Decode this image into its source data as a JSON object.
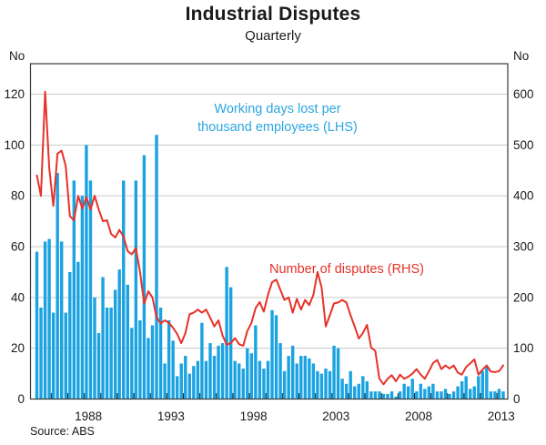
{
  "chart_data": {
    "type": "combo-bar-line",
    "title": "Industrial Disputes",
    "subtitle": "Quarterly",
    "frequency": "quarterly",
    "start": "1985Q1",
    "end": "2013Q2",
    "left_axis": {
      "unit": "No",
      "ticks": [
        0,
        20,
        40,
        60,
        80,
        100,
        120
      ],
      "range": [
        0,
        132
      ]
    },
    "right_axis": {
      "unit": "No",
      "ticks": [
        0,
        100,
        200,
        300,
        400,
        500,
        600
      ],
      "range": [
        0,
        660
      ]
    },
    "x_axis": {
      "year_labels": [
        1988,
        1993,
        1998,
        2003,
        2008,
        2013
      ],
      "first_year": 1985,
      "last_year": 2013
    },
    "grid": "horizontal",
    "series": [
      {
        "name": "Working days lost per thousand employees (LHS)",
        "type": "bar",
        "axis": "left",
        "color": "#1ba3e1",
        "values": [
          58,
          36,
          62,
          63,
          34,
          89,
          62,
          34,
          50,
          86,
          54,
          80,
          100,
          86,
          40,
          26,
          48,
          36,
          36,
          43,
          51,
          86,
          45,
          28,
          86,
          31,
          96,
          24,
          29,
          104,
          36,
          14,
          31,
          23,
          9,
          14,
          17,
          10,
          13,
          15,
          30,
          15,
          22,
          17,
          21,
          22,
          52,
          44,
          15,
          14,
          12,
          20,
          18,
          29,
          15,
          12,
          15,
          35,
          33,
          22,
          11,
          17,
          21,
          14,
          17,
          17,
          16,
          14,
          11,
          10,
          12,
          11,
          21,
          20,
          8,
          6,
          11,
          5,
          6,
          9,
          7,
          3,
          3,
          3,
          2,
          2,
          3,
          1,
          3,
          6,
          5,
          8,
          3,
          6,
          4,
          5,
          6,
          3,
          3,
          4,
          2,
          3,
          5,
          7,
          9,
          4,
          5,
          9,
          11,
          13,
          3,
          3,
          4,
          3
        ]
      },
      {
        "name": "Number of disputes (RHS)",
        "type": "line",
        "axis": "right",
        "color": "#e63229",
        "values": [
          440,
          400,
          605,
          455,
          380,
          483,
          489,
          459,
          360,
          352,
          400,
          375,
          397,
          373,
          400,
          373,
          350,
          352,
          325,
          318,
          333,
          320,
          291,
          285,
          297,
          250,
          188,
          212,
          200,
          161,
          149,
          155,
          150,
          140,
          128,
          110,
          130,
          167,
          170,
          176,
          170,
          176,
          160,
          143,
          155,
          125,
          107,
          110,
          120,
          108,
          105,
          134,
          150,
          179,
          191,
          172,
          205,
          230,
          235,
          215,
          195,
          200,
          170,
          197,
          176,
          195,
          185,
          205,
          250,
          220,
          143,
          165,
          188,
          190,
          195,
          190,
          165,
          143,
          119,
          130,
          146,
          101,
          95,
          40,
          29,
          40,
          47,
          35,
          48,
          40,
          44,
          50,
          59,
          48,
          40,
          55,
          71,
          77,
          59,
          66,
          60,
          66,
          52,
          48,
          63,
          70,
          78,
          48,
          58,
          66,
          54,
          53,
          55,
          66
        ]
      }
    ],
    "annotations": [
      {
        "text_line1": "Working days lost per",
        "text_line2": "thousand employees (LHS)",
        "color": "blue"
      },
      {
        "text_line1": "Number of disputes (RHS)",
        "text_line2": "",
        "color": "red"
      }
    ],
    "source": "Source: ABS",
    "colors": {
      "bar": "#1ba3e1",
      "line": "#e63229",
      "grid": "#c9c9c9",
      "frame": "#3a3a3a",
      "text": "#1a1a1a"
    }
  }
}
